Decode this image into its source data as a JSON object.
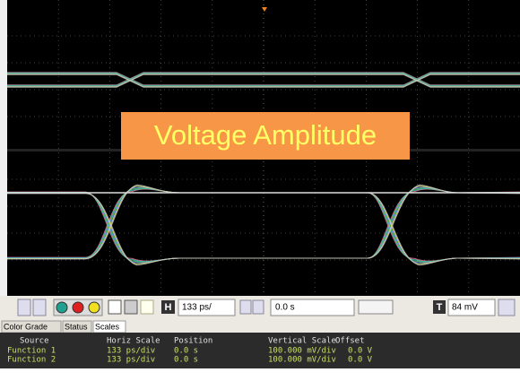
{
  "overlay_label": "Voltage Amplitude",
  "toolbar": {
    "h_icon": "H",
    "timebase": "133 ps/",
    "delay": "0.0 s",
    "t_icon": "T",
    "trigger_level": "84 mV"
  },
  "tabs": [
    "Color Grade",
    "Status",
    "Scales"
  ],
  "table": {
    "header": [
      "Source",
      "Horiz Scale",
      "Position",
      "Vertical Scale",
      "Offset"
    ],
    "rows": [
      [
        "Function 1",
        "133 ps/div",
        "0.0 s",
        "100.000 mV/div",
        "0.0 V"
      ],
      [
        "Function 2",
        "133 ps/div",
        "0.0 s",
        "100.000 mV/div",
        "0.0 V"
      ]
    ]
  }
}
